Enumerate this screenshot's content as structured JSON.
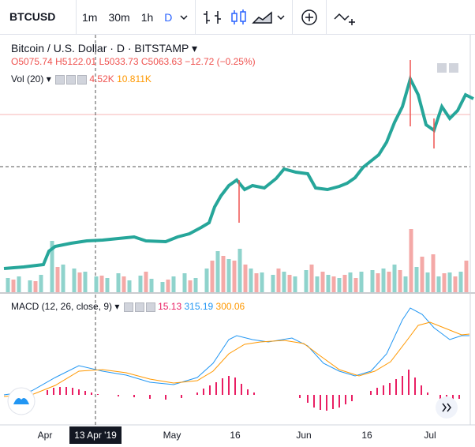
{
  "toolbar": {
    "symbol": "BTCUSD",
    "intervals": [
      "1m",
      "30m",
      "1h",
      "D"
    ]
  },
  "legend": {
    "title": "Bitcoin / U.S. Dollar · D · BITSTAMP",
    "open": "O5075.74",
    "high": "H5122.01",
    "low": "L5033.73",
    "close": "C5063.63",
    "change": "−12.72 (−0.25%)"
  },
  "volume": {
    "label": "Vol (20)",
    "value": "4.52K",
    "ma": "10.811K"
  },
  "macd": {
    "label": "MACD (12, 26, close, 9)",
    "hist": "15.13",
    "macd": "315.19",
    "signal": "300.06"
  },
  "x_axis": {
    "labels": [
      "Apr",
      "May",
      "16",
      "Jun",
      "16",
      "Jul"
    ],
    "crosshair": "13 Apr '19"
  }
}
